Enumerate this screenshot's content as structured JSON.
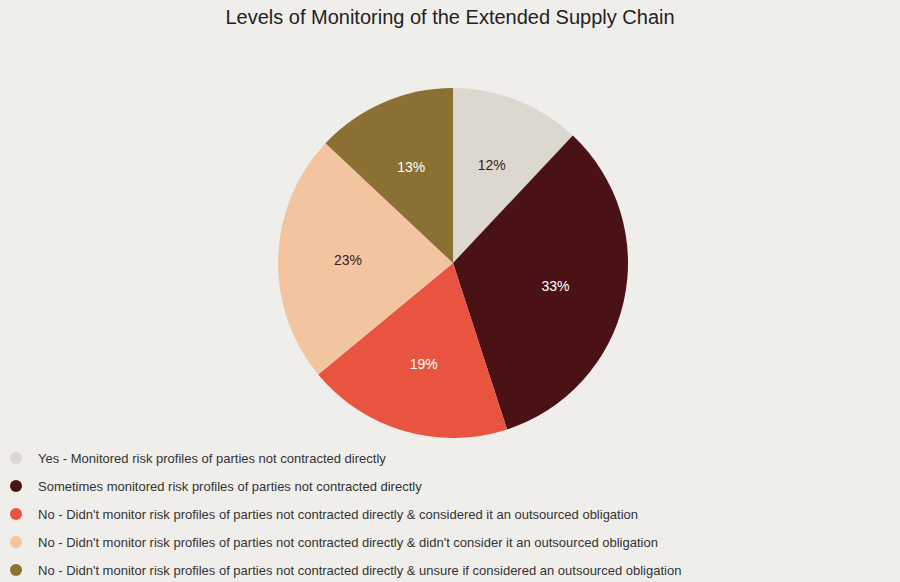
{
  "chart_data": {
    "type": "pie",
    "title": "Levels of Monitoring of the Extended Supply Chain",
    "categories": [
      "Yes - Monitored risk profiles of parties not contracted directly",
      "Sometimes monitored risk profiles of parties not contracted directly",
      "No - Didn't monitor risk profiles of parties not contracted directly & considered it an outsourced obligation",
      "No - Didn't monitor risk profiles of parties not contracted directly & didn't consider it an outsourced obligation",
      "No - Didn't monitor risk profiles of parties not contracted directly & unsure if considered an outsourced obligation"
    ],
    "values": [
      12,
      33,
      19,
      23,
      13
    ],
    "value_labels": [
      "12%",
      "33%",
      "19%",
      "23%",
      "13%"
    ],
    "colors": [
      "#dcd8d0",
      "#4a1214",
      "#e85440",
      "#f2c5a0",
      "#8a7032"
    ],
    "data_labels": true,
    "legend": "bottom"
  }
}
